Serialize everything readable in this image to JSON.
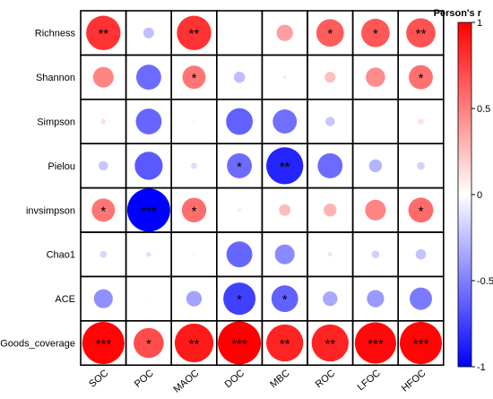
{
  "chart_data": {
    "type": "heatmap",
    "style": "correlation-circles",
    "rows": [
      "Richness",
      "Shannon",
      "Simpson",
      "Pielou",
      "invsimpson",
      "Chao1",
      "ACE",
      "Goods_coverage"
    ],
    "columns": [
      "SOC",
      "POC",
      "MAOC",
      "DOC",
      "MBC",
      "ROC",
      "LFOC",
      "HFOC"
    ],
    "values": [
      [
        0.8,
        -0.25,
        0.8,
        0.0,
        0.38,
        0.64,
        0.66,
        0.68
      ],
      [
        0.48,
        -0.58,
        0.54,
        -0.26,
        -0.08,
        0.25,
        0.45,
        0.56
      ],
      [
        0.12,
        -0.6,
        0.06,
        -0.62,
        -0.56,
        -0.22,
        0.02,
        0.13
      ],
      [
        -0.22,
        -0.65,
        -0.14,
        -0.58,
        -0.86,
        -0.58,
        -0.3,
        -0.18
      ],
      [
        0.54,
        -1.0,
        0.57,
        -0.08,
        0.27,
        0.3,
        0.48,
        0.58
      ],
      [
        -0.16,
        -0.12,
        -0.06,
        -0.6,
        -0.46,
        -0.1,
        -0.18,
        -0.24
      ],
      [
        -0.44,
        -0.04,
        -0.36,
        -0.75,
        -0.62,
        -0.34,
        -0.4,
        -0.52
      ],
      [
        0.98,
        0.7,
        0.9,
        1.0,
        0.86,
        0.86,
        0.96,
        0.98
      ]
    ],
    "significance": [
      [
        "**",
        "",
        "**",
        "",
        "",
        "*",
        "*",
        "**"
      ],
      [
        "",
        "",
        "*",
        "",
        "",
        "",
        "",
        "*"
      ],
      [
        "",
        "",
        "",
        "",
        "",
        "",
        "",
        ""
      ],
      [
        "",
        "",
        "",
        "*",
        "**",
        "",
        "",
        ""
      ],
      [
        "*",
        "***",
        "*",
        "",
        "",
        "",
        "",
        "*"
      ],
      [
        "",
        "",
        "",
        "",
        "",
        "",
        "",
        ""
      ],
      [
        "",
        "",
        "",
        "*",
        "*",
        "",
        "",
        ""
      ],
      [
        "***",
        "*",
        "**",
        "***",
        "**",
        "**",
        "***",
        "***"
      ]
    ],
    "colorbar": {
      "title": "Person's r",
      "ticks": [
        "1",
        "0.5",
        "0",
        "-0.5",
        "-1"
      ],
      "range": [
        -1,
        1
      ],
      "low_color": "#0000FF",
      "mid_color": "#FFFFFF",
      "high_color": "#FF0000"
    },
    "grid": true
  }
}
